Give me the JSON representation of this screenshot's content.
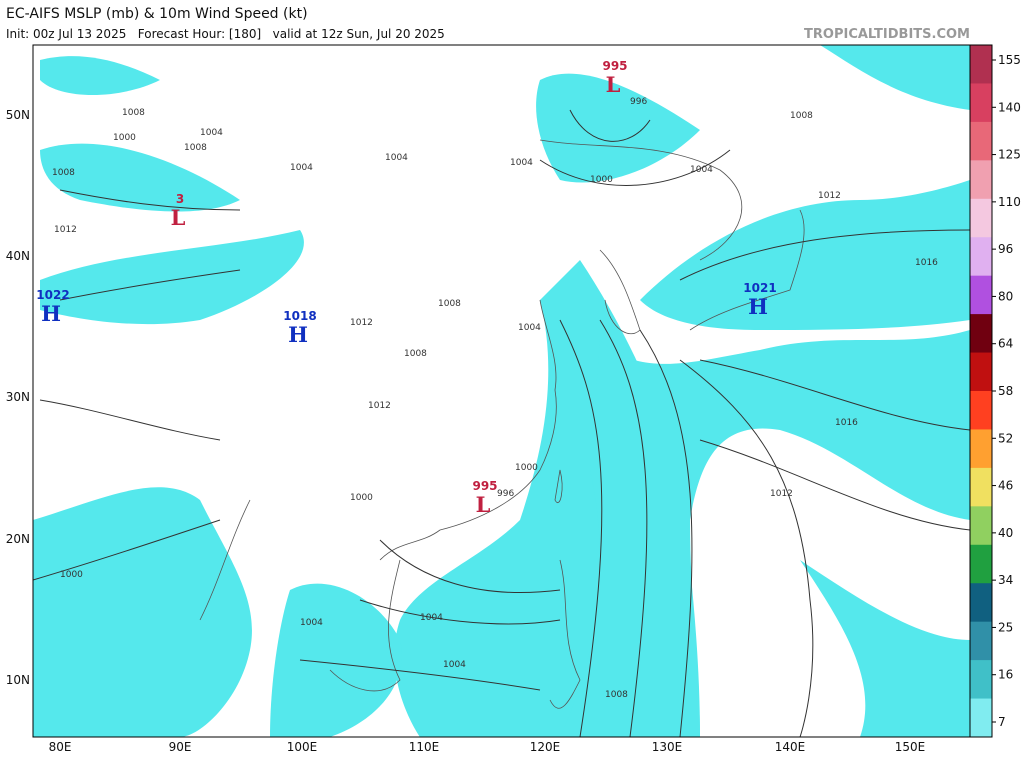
{
  "header": {
    "title": "EC-AIFS MSLP (mb) & 10m Wind Speed (kt)",
    "subtitle": "Init: 00z Jul 13 2025   Forecast Hour: [180]   valid at 12z Sun, Jul 20 2025",
    "watermark": "TROPICALTIDBITS.COM"
  },
  "map": {
    "latitude_labels": [
      "50N",
      "40N",
      "30N",
      "20N",
      "10N"
    ],
    "longitude_labels": [
      "80E",
      "90E",
      "100E",
      "110E",
      "120E",
      "130E",
      "140E",
      "150E"
    ],
    "pressure_centers": [
      {
        "value": "995",
        "letter": "L"
      },
      {
        "value": "3",
        "letter": "L"
      },
      {
        "value": "1022",
        "letter": "H"
      },
      {
        "value": "1018",
        "letter": "H"
      },
      {
        "value": "1021",
        "letter": "H"
      },
      {
        "value": "995",
        "letter": "L"
      }
    ],
    "isobar_labels": [
      "1008",
      "1004",
      "1008",
      "1000",
      "1004",
      "1012",
      "1008",
      "1004",
      "1004",
      "1012",
      "1008",
      "1008",
      "1004",
      "1012",
      "1016",
      "1016",
      "1012",
      "1004",
      "1000",
      "1000",
      "1000",
      "1004",
      "1004",
      "1008",
      "1000",
      "1004",
      "996",
      "996",
      "1012",
      "1008"
    ]
  },
  "colorbar": {
    "ticks": [
      155,
      140,
      125,
      110,
      96,
      80,
      64,
      58,
      52,
      46,
      40,
      34,
      25,
      16,
      7
    ],
    "colors": [
      "#b03050",
      "#d84060",
      "#e86878",
      "#f0a0b0",
      "#f4c8e0",
      "#e0b0f0",
      "#b050e0",
      "#700010",
      "#c01010",
      "#ff4020",
      "#ffa030",
      "#f0e060",
      "#90d060",
      "#20a040",
      "#106080",
      "#3090a8",
      "#40c0c8",
      "#80ecf0"
    ]
  }
}
